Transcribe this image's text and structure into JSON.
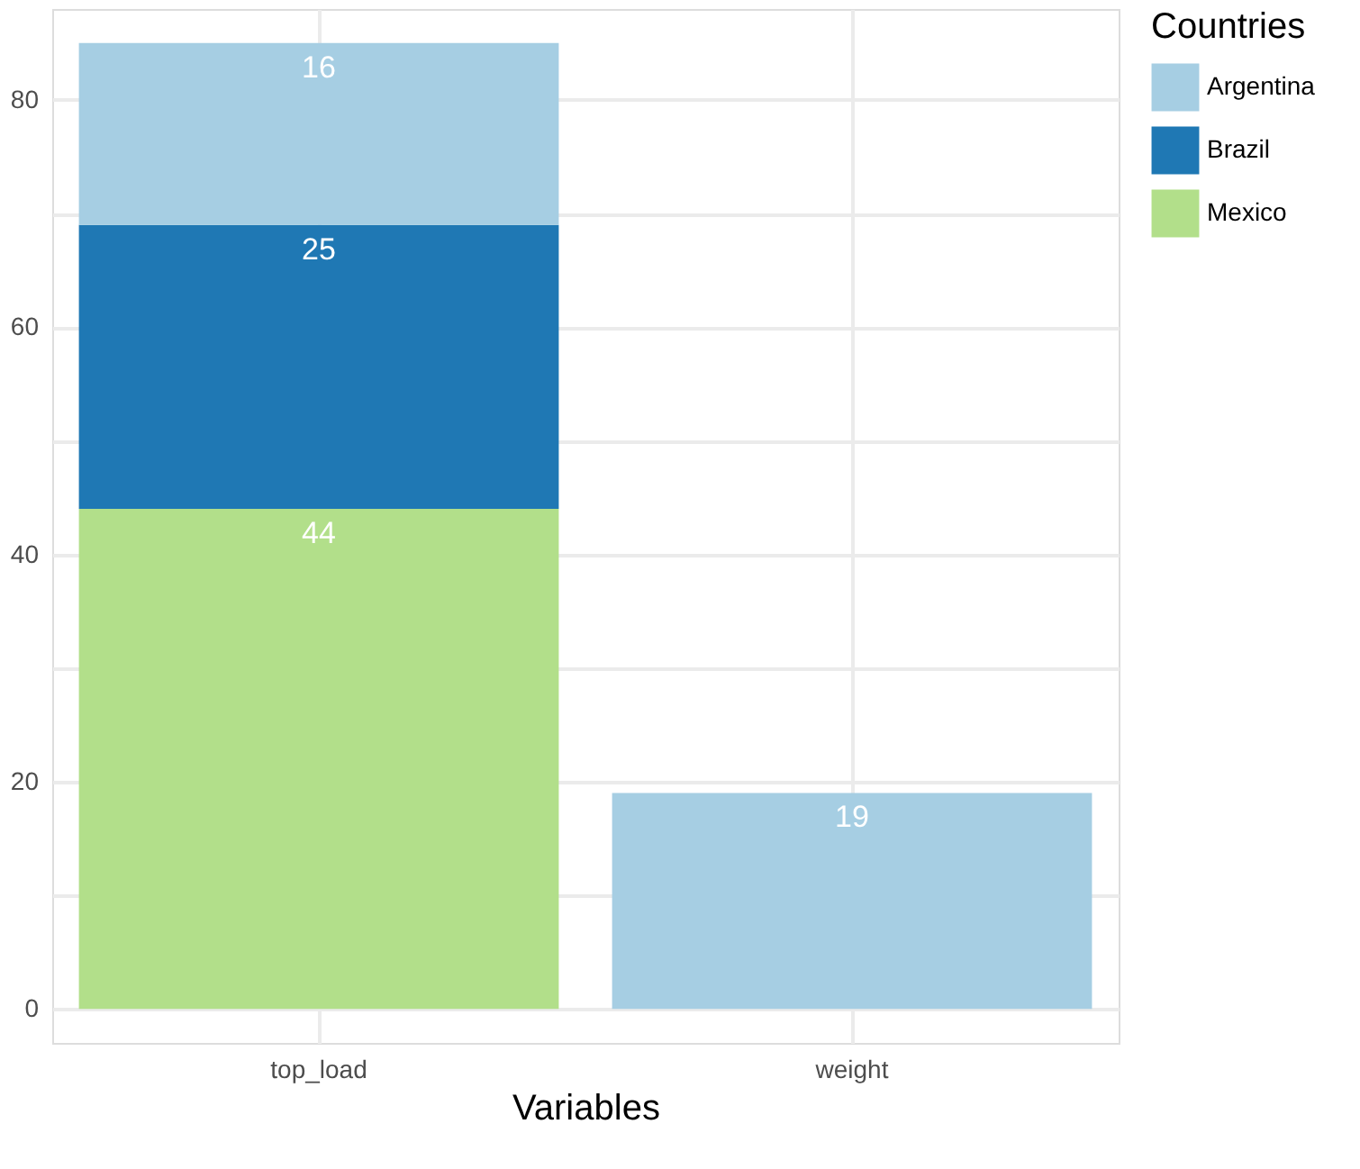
{
  "chart_data": {
    "type": "bar",
    "stacked": true,
    "xlabel": "Variables",
    "legend_title": "Countries",
    "legend": "right",
    "grid": true,
    "data_labels": true,
    "categories": [
      "top_load",
      "weight"
    ],
    "series": [
      {
        "name": "Mexico",
        "color": "#b2df8a",
        "values": [
          44,
          null
        ]
      },
      {
        "name": "Brazil",
        "color": "#1f78b4",
        "values": [
          25,
          null
        ]
      },
      {
        "name": "Argentina",
        "color": "#a6cee3",
        "values": [
          16,
          19
        ]
      }
    ],
    "ylim": [
      -3,
      88
    ],
    "yticks": [
      0,
      {
        "value": 10,
        "label": null
      },
      20,
      {
        "value": 30,
        "label": null
      },
      40,
      {
        "value": 50,
        "label": null
      },
      60,
      {
        "value": 70,
        "label": null
      },
      80
    ]
  }
}
